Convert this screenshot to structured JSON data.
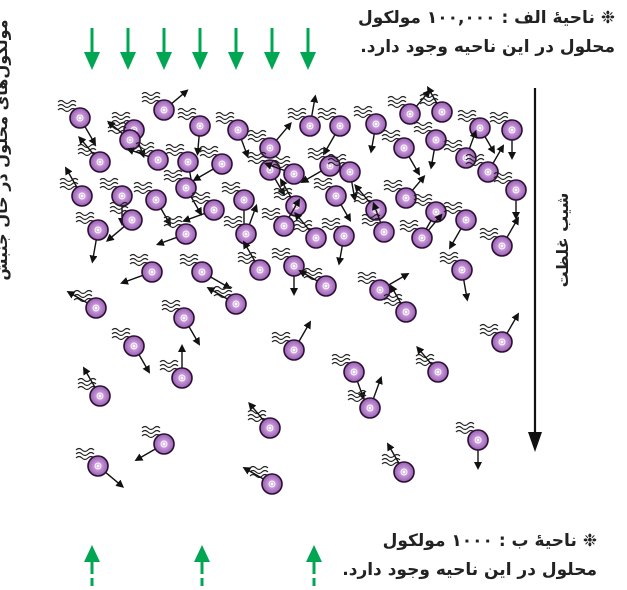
{
  "region_a": {
    "line1": "❉ ناحیهٔ الف : ۱۰۰,۰۰۰ مولکول",
    "line2": "محلول در این ناحیه وجود دارد."
  },
  "region_b": {
    "line1": "❉ ناحیهٔ ب : ۱۰۰۰ مولکول",
    "line2": "محلول در این ناحیه وجود دارد."
  },
  "side_label": "مولکول‌های محلول در حال جنبش",
  "gradient_label": "شیب غلظت",
  "colors": {
    "molecule_fill": "#b07fc7",
    "molecule_stroke": "#2a1030",
    "arrow_green": "#00a651",
    "ink": "#111111"
  }
}
